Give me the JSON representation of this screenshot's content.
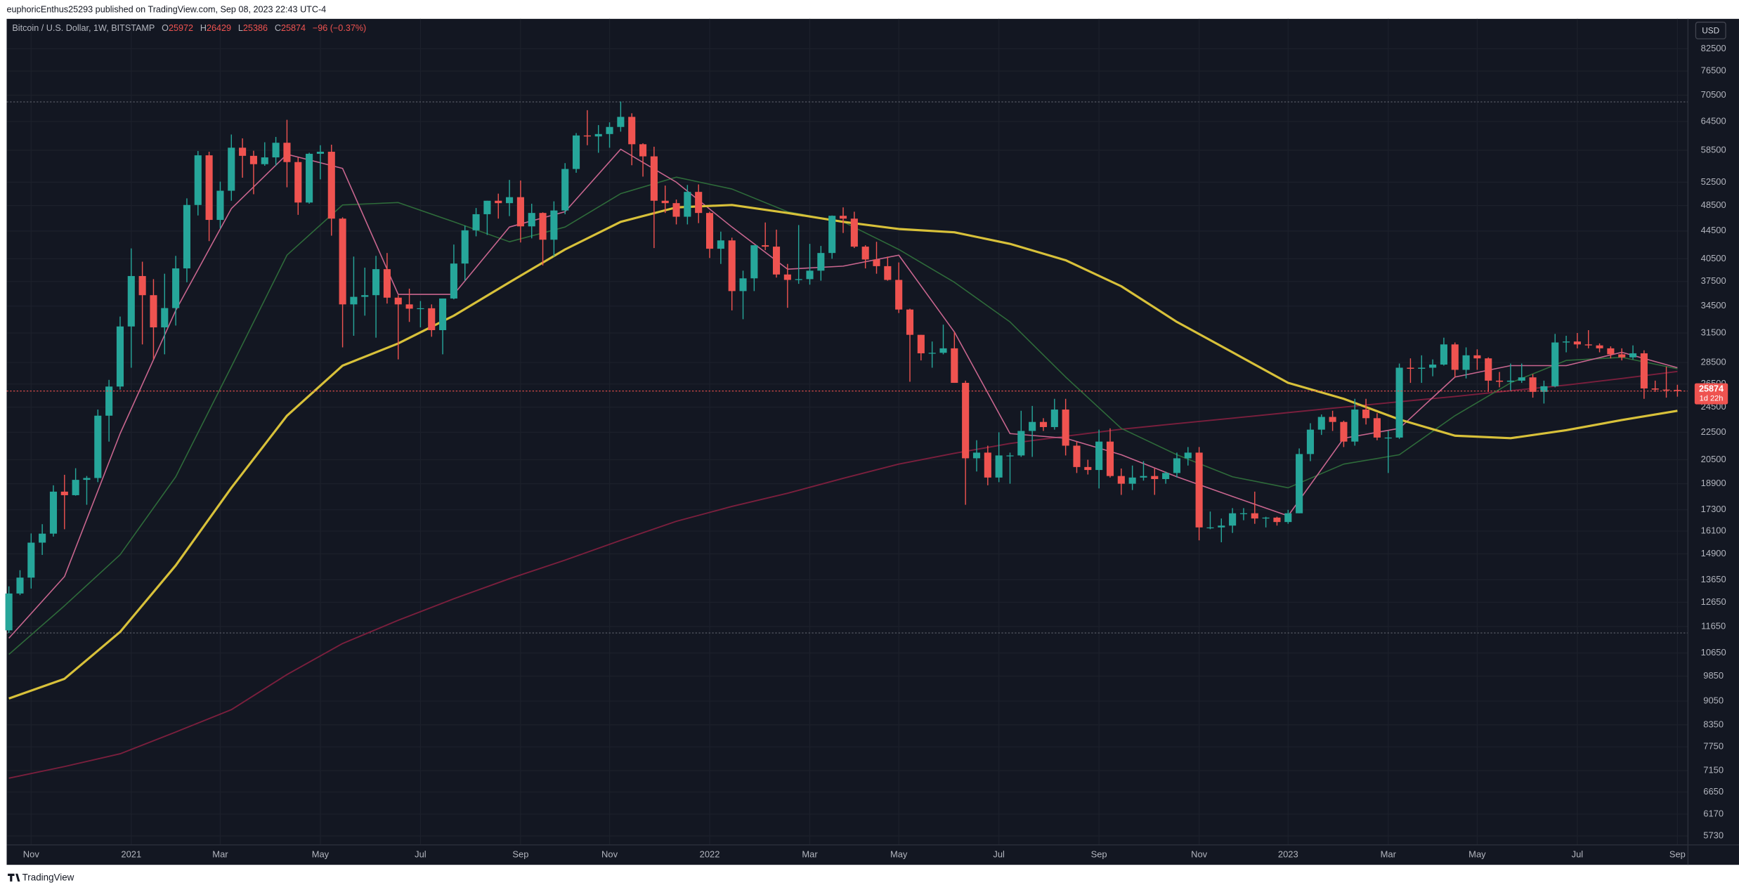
{
  "header": {
    "publisher": "euphoricEnthus25293 published on TradingView.com, Sep 08, 2023 22:43 UTC-4"
  },
  "footer": {
    "brand": "TradingView"
  },
  "chart_data": {
    "type": "candlestick",
    "symbol": "Bitcoin / U.S. Dollar, 1W, BITSTAMP",
    "ohlc_letters": [
      "O",
      "H",
      "L",
      "C"
    ],
    "change_label": "−96 (−0.37%)",
    "countdown": "1d 22h",
    "currency": "USD",
    "log_scale": true,
    "grid": true,
    "up_color": "#26a69a",
    "down_color": "#ef5350",
    "ylim": [
      5560,
      91300
    ],
    "yticks": [
      82500,
      76500,
      70500,
      64500,
      58500,
      52500,
      48500,
      44500,
      40500,
      37500,
      34500,
      31500,
      28500,
      26500,
      24500,
      22500,
      20500,
      18900,
      17300,
      16100,
      14900,
      13650,
      12650,
      11650,
      10650,
      9850,
      9050,
      8350,
      7750,
      7150,
      6650,
      6170,
      5730
    ],
    "xticks": [
      {
        "value": 2,
        "label": "Nov"
      },
      {
        "value": 11,
        "label": "2021"
      },
      {
        "value": 19,
        "label": "Mar"
      },
      {
        "value": 28,
        "label": "May"
      },
      {
        "value": 37,
        "label": "Jul"
      },
      {
        "value": 46,
        "label": "Sep"
      },
      {
        "value": 54,
        "label": "Nov"
      },
      {
        "value": 63,
        "label": "2022"
      },
      {
        "value": 72,
        "label": "Mar"
      },
      {
        "value": 80,
        "label": "May"
      },
      {
        "value": 89,
        "label": "Jul"
      },
      {
        "value": 98,
        "label": "Sep"
      },
      {
        "value": 107,
        "label": "Nov"
      },
      {
        "value": 115,
        "label": "2023"
      },
      {
        "value": 124,
        "label": "Mar"
      },
      {
        "value": 132,
        "label": "May"
      },
      {
        "value": 141,
        "label": "Jul"
      },
      {
        "value": 150,
        "label": "Sep"
      }
    ],
    "hlines": [
      68900,
      11400
    ],
    "ohlc": [
      [
        11500,
        13350,
        11400,
        13030
      ],
      [
        13030,
        14100,
        12960,
        13750
      ],
      [
        13750,
        15970,
        13250,
        15480
      ],
      [
        15480,
        16480,
        14850,
        15960
      ],
      [
        15960,
        18800,
        15800,
        18400
      ],
      [
        18400,
        19480,
        16200,
        18180
      ],
      [
        18180,
        19920,
        18150,
        19150
      ],
      [
        19150,
        19400,
        17600,
        19270
      ],
      [
        19270,
        24300,
        19000,
        23800
      ],
      [
        23800,
        26870,
        21800,
        26270
      ],
      [
        26270,
        33300,
        26000,
        32200
      ],
      [
        32200,
        41950,
        28000,
        38200
      ],
      [
        38200,
        40100,
        30300,
        35800
      ],
      [
        35800,
        37800,
        28800,
        32100
      ],
      [
        32100,
        38500,
        29300,
        34270
      ],
      [
        34270,
        40900,
        32300,
        39200
      ],
      [
        39200,
        49700,
        37400,
        48600
      ],
      [
        48600,
        58350,
        46900,
        57500
      ],
      [
        57500,
        58200,
        43000,
        46200
      ],
      [
        46200,
        52600,
        44900,
        51000
      ],
      [
        51000,
        61700,
        49300,
        59000
      ],
      [
        59000,
        60900,
        53300,
        57400
      ],
      [
        57400,
        58400,
        50400,
        55800
      ],
      [
        55800,
        60100,
        55500,
        57100
      ],
      [
        57100,
        61200,
        55500,
        60000
      ],
      [
        60000,
        64850,
        51600,
        56200
      ],
      [
        56200,
        57100,
        47000,
        49000
      ],
      [
        49000,
        58000,
        48800,
        57800
      ],
      [
        57800,
        59500,
        53000,
        58200
      ],
      [
        58200,
        59600,
        43800,
        46400
      ],
      [
        46400,
        46600,
        30000,
        34700
      ],
      [
        34700,
        40800,
        31200,
        35600
      ],
      [
        35600,
        39300,
        33400,
        35800
      ],
      [
        35800,
        40900,
        31000,
        39100
      ],
      [
        39100,
        41300,
        34800,
        35500
      ],
      [
        35500,
        35800,
        28800,
        34700
      ],
      [
        34700,
        36600,
        32700,
        34200
      ],
      [
        34200,
        35100,
        32100,
        34250
      ],
      [
        34250,
        34700,
        31100,
        31800
      ],
      [
        31800,
        35400,
        29300,
        35400
      ],
      [
        35400,
        42500,
        35300,
        39850
      ],
      [
        39850,
        45300,
        37600,
        44600
      ],
      [
        44600,
        48100,
        43700,
        47100
      ],
      [
        47100,
        49300,
        43900,
        49300
      ],
      [
        49300,
        50500,
        46400,
        48900
      ],
      [
        48900,
        52900,
        46800,
        49900
      ],
      [
        49900,
        52800,
        42800,
        45200
      ],
      [
        45200,
        48800,
        43400,
        47300
      ],
      [
        47300,
        47400,
        39600,
        43200
      ],
      [
        43200,
        49200,
        40800,
        47700
      ],
      [
        47700,
        56000,
        47100,
        54900
      ],
      [
        54900,
        62000,
        54200,
        61500
      ],
      [
        61500,
        67000,
        59500,
        61300
      ],
      [
        61300,
        63700,
        58000,
        61800
      ],
      [
        61800,
        64300,
        59000,
        63300
      ],
      [
        63300,
        69000,
        62300,
        65500
      ],
      [
        65500,
        66300,
        55600,
        59700
      ],
      [
        59700,
        59900,
        53500,
        57300
      ],
      [
        57300,
        59200,
        42000,
        49300
      ],
      [
        49300,
        51900,
        47300,
        48900
      ],
      [
        48900,
        49500,
        45500,
        46700
      ],
      [
        46700,
        52000,
        45500,
        50800
      ],
      [
        50800,
        52100,
        45700,
        47300
      ],
      [
        47300,
        47500,
        40600,
        41900
      ],
      [
        41900,
        44400,
        39800,
        43100
      ],
      [
        43100,
        43500,
        34000,
        36300
      ],
      [
        36300,
        38900,
        33000,
        37900
      ],
      [
        37900,
        42400,
        36300,
        42400
      ],
      [
        42400,
        45800,
        41700,
        42200
      ],
      [
        42200,
        44700,
        38000,
        38400
      ],
      [
        38400,
        39800,
        34300,
        37700
      ],
      [
        37700,
        45400,
        37200,
        37800
      ],
      [
        37800,
        42600,
        37100,
        38900
      ],
      [
        38900,
        42300,
        37600,
        41300
      ],
      [
        41300,
        46900,
        40500,
        46850
      ],
      [
        46850,
        48200,
        44200,
        46400
      ],
      [
        46400,
        47500,
        42000,
        42200
      ],
      [
        42200,
        42400,
        39200,
        40400
      ],
      [
        40400,
        42900,
        38500,
        39500
      ],
      [
        39500,
        40800,
        37600,
        37700
      ],
      [
        37700,
        40000,
        33700,
        34100
      ],
      [
        34100,
        34200,
        26700,
        31300
      ],
      [
        31300,
        31300,
        28700,
        29400
      ],
      [
        29400,
        30600,
        28000,
        29450
      ],
      [
        29450,
        32400,
        29300,
        29900
      ],
      [
        29900,
        31600,
        26600,
        26600
      ],
      [
        26600,
        26800,
        17600,
        20600
      ],
      [
        20600,
        21900,
        19700,
        21000
      ],
      [
        21000,
        21500,
        18800,
        19300
      ],
      [
        19300,
        22500,
        19000,
        20800
      ],
      [
        20800,
        21000,
        18900,
        20800
      ],
      [
        20800,
        24200,
        20700,
        22600
      ],
      [
        22600,
        24600,
        20700,
        23300
      ],
      [
        23300,
        23600,
        22600,
        22900
      ],
      [
        22900,
        25200,
        22700,
        24300
      ],
      [
        24300,
        25200,
        20800,
        21500
      ],
      [
        21500,
        21800,
        19600,
        20000
      ],
      [
        20000,
        20500,
        19500,
        19800
      ],
      [
        19800,
        22700,
        18600,
        21800
      ],
      [
        21800,
        22800,
        19300,
        19400
      ],
      [
        19400,
        19900,
        18200,
        18900
      ],
      [
        18900,
        20100,
        18500,
        19300
      ],
      [
        19300,
        20400,
        19100,
        19400
      ],
      [
        19400,
        19900,
        18200,
        19200
      ],
      [
        19200,
        19700,
        18900,
        19600
      ],
      [
        19600,
        21000,
        19300,
        20600
      ],
      [
        20600,
        21400,
        20100,
        21000
      ],
      [
        21000,
        21400,
        15600,
        16300
      ],
      [
        16300,
        17200,
        16200,
        16300
      ],
      [
        16300,
        16800,
        15500,
        16400
      ],
      [
        16400,
        17400,
        16000,
        17100
      ],
      [
        17100,
        17400,
        16700,
        17100
      ],
      [
        17100,
        18400,
        16500,
        16800
      ],
      [
        16800,
        16900,
        16300,
        16850
      ],
      [
        16850,
        16900,
        16400,
        16600
      ],
      [
        16600,
        17300,
        16500,
        17100
      ],
      [
        17100,
        21300,
        17100,
        20900
      ],
      [
        20900,
        23200,
        20400,
        22700
      ],
      [
        22700,
        23900,
        22300,
        23700
      ],
      [
        23700,
        24200,
        22600,
        23300
      ],
      [
        23300,
        23400,
        21400,
        21800
      ],
      [
        21800,
        25200,
        21500,
        24300
      ],
      [
        24300,
        25200,
        23100,
        23600
      ],
      [
        23600,
        24000,
        21900,
        22100
      ],
      [
        22100,
        22600,
        19600,
        22100
      ],
      [
        22100,
        28400,
        22000,
        28000
      ],
      [
        28000,
        28900,
        26600,
        27900
      ],
      [
        27900,
        29200,
        26600,
        28000
      ],
      [
        28000,
        28800,
        27200,
        28300
      ],
      [
        28300,
        31000,
        28200,
        30300
      ],
      [
        30300,
        30500,
        27100,
        27800
      ],
      [
        27800,
        30000,
        27000,
        29200
      ],
      [
        29200,
        29800,
        27800,
        28900
      ],
      [
        28900,
        29000,
        25800,
        26800
      ],
      [
        26800,
        27600,
        26200,
        26700
      ],
      [
        26700,
        28400,
        25900,
        26800
      ],
      [
        26800,
        28400,
        26600,
        27100
      ],
      [
        27100,
        27400,
        25300,
        25800
      ],
      [
        25800,
        26800,
        24800,
        26300
      ],
      [
        26300,
        31400,
        26200,
        30500
      ],
      [
        30500,
        31200,
        29500,
        30600
      ],
      [
        30600,
        31500,
        29900,
        30300
      ],
      [
        30300,
        31800,
        29900,
        30200
      ],
      [
        30200,
        30400,
        29500,
        29900
      ],
      [
        29900,
        30100,
        28900,
        29300
      ],
      [
        29300,
        29900,
        28700,
        29000
      ],
      [
        29000,
        30200,
        28800,
        29400
      ],
      [
        29400,
        29700,
        25200,
        26100
      ],
      [
        26100,
        26800,
        25800,
        26000
      ],
      [
        26000,
        28100,
        25300,
        25972
      ],
      [
        25972,
        26429,
        25386,
        25874
      ]
    ],
    "ma_x": [
      0,
      5,
      10,
      15,
      20,
      25,
      30,
      35,
      40,
      45,
      50,
      55,
      60,
      65,
      70,
      75,
      80,
      85,
      90,
      95,
      100,
      105,
      110,
      115,
      120,
      125,
      130,
      135,
      140,
      145,
      150
    ],
    "series": [
      {
        "color": "#7a1f3d",
        "width": 1.2,
        "values": [
          6970,
          7250,
          7570,
          8150,
          8790,
          9900,
          11000,
          11900,
          12800,
          13700,
          14590,
          15600,
          16640,
          17500,
          18300,
          19250,
          20200,
          20950,
          21660,
          22200,
          22730,
          23170,
          23600,
          24050,
          24500,
          24950,
          25400,
          25900,
          26400,
          27000,
          27650
        ]
      },
      {
        "color": "#2e6b3a",
        "width": 1.0,
        "values": [
          10600,
          12500,
          14860,
          19350,
          28100,
          41000,
          48600,
          49000,
          45900,
          42900,
          45100,
          50500,
          53400,
          51300,
          47500,
          45900,
          41800,
          37400,
          32700,
          27130,
          22800,
          20850,
          19350,
          18640,
          20200,
          20850,
          23800,
          26600,
          28700,
          29000,
          27900
        ]
      },
      {
        "color": "#c9668f",
        "width": 1.0,
        "values": [
          11200,
          13800,
          22400,
          34000,
          48000,
          57700,
          55000,
          35900,
          35900,
          45100,
          47500,
          58700,
          52500,
          45100,
          39100,
          39500,
          41000,
          31600,
          22400,
          22050,
          20850,
          19350,
          18100,
          16950,
          22050,
          22800,
          27130,
          28200,
          28200,
          29500,
          28000
        ]
      },
      {
        "color": "#d8c13a",
        "width": 2.0,
        "values": [
          9130,
          9760,
          11440,
          14330,
          18640,
          23800,
          28200,
          30400,
          33400,
          37400,
          41800,
          45900,
          48200,
          48600,
          47300,
          45900,
          44800,
          44300,
          42600,
          40300,
          36900,
          32700,
          29500,
          26600,
          25200,
          23500,
          22240,
          22050,
          22660,
          23450,
          24200
        ]
      }
    ]
  }
}
